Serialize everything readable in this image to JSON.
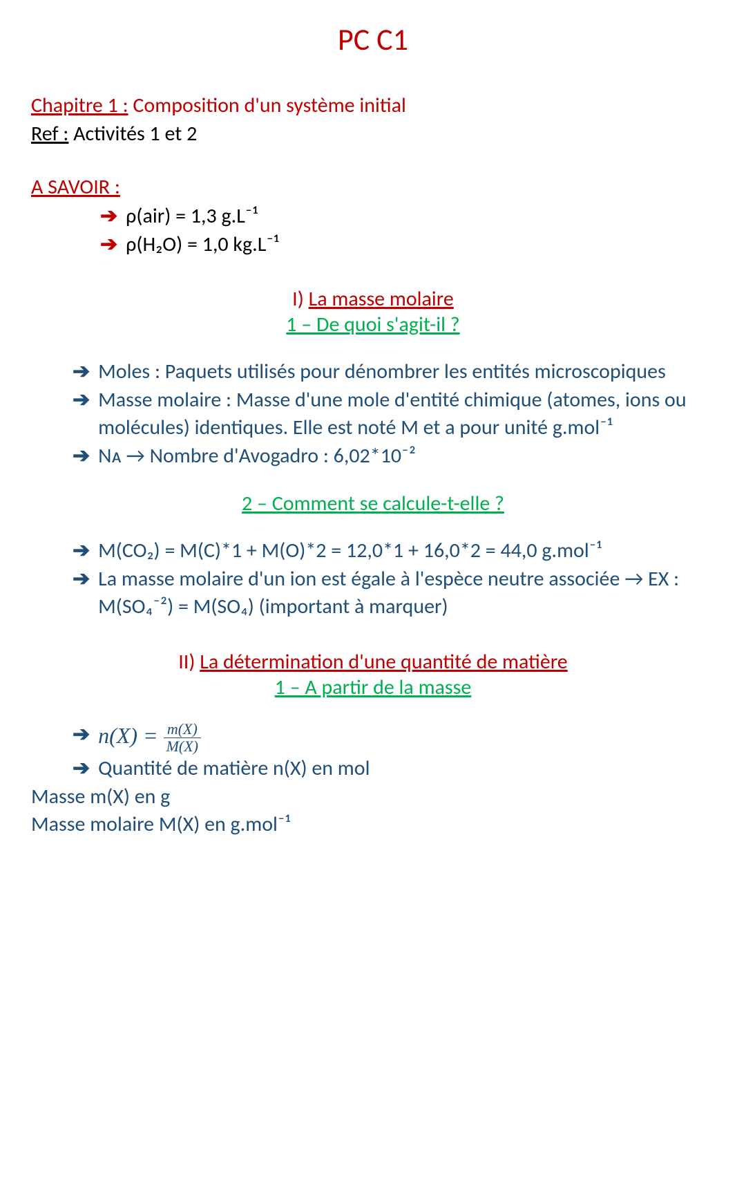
{
  "colors": {
    "red": "#c00000",
    "blue": "#1f4e79",
    "green": "#00b050",
    "black": "#000000"
  },
  "title": "PC C1",
  "chapter": {
    "label": "Chapitre 1 :",
    "text": " Composition d'un système initial"
  },
  "ref": {
    "label": "Ref :",
    "text": " Activités 1 et 2"
  },
  "savoir": {
    "heading": "A SAVOIR :",
    "items": [
      "ρ(air) = 1,3 g.L⁻¹",
      "ρ(H₂O) = 1,0 kg.L⁻¹"
    ]
  },
  "section1": {
    "num": "I) ",
    "title": "La masse molaire",
    "sub1": {
      "heading": "1 – De quoi s'agit-il ?",
      "items": [
        "Moles : Paquets utilisés pour dénombrer les entités microscopiques",
        "Masse molaire : Masse d'une mole d'entité chimique (atomes, ions ou molécules) identiques. Elle est noté M et a pour unité g.mol⁻¹",
        "Nᴀ → Nombre d'Avogadro : 6,02*10⁻²"
      ]
    },
    "sub2": {
      "heading": "2 – Comment se calcule-t-elle ?",
      "items": [
        "M(CO₂) = M(C)*1 + M(O)*2 = 12,0*1 + 16,0*2 = 44,0 g.mol⁻¹",
        "La masse molaire d'un ion est égale à l'espèce neutre associée → EX : M(SO₄⁻²) = M(SO₄) (important à marquer)"
      ]
    }
  },
  "section2": {
    "num": "II) ",
    "title": "La détermination d'une quantité de matière",
    "sub1": {
      "heading": "1 – A partir de la masse",
      "formula": {
        "lhs": "n(X) = ",
        "num": "m(X)",
        "den": "M(X)"
      },
      "items": [
        "Quantité de matière n(X) en mol"
      ],
      "plain": [
        "Masse m(X) en g",
        "Masse molaire M(X) en g.mol⁻¹"
      ]
    }
  }
}
